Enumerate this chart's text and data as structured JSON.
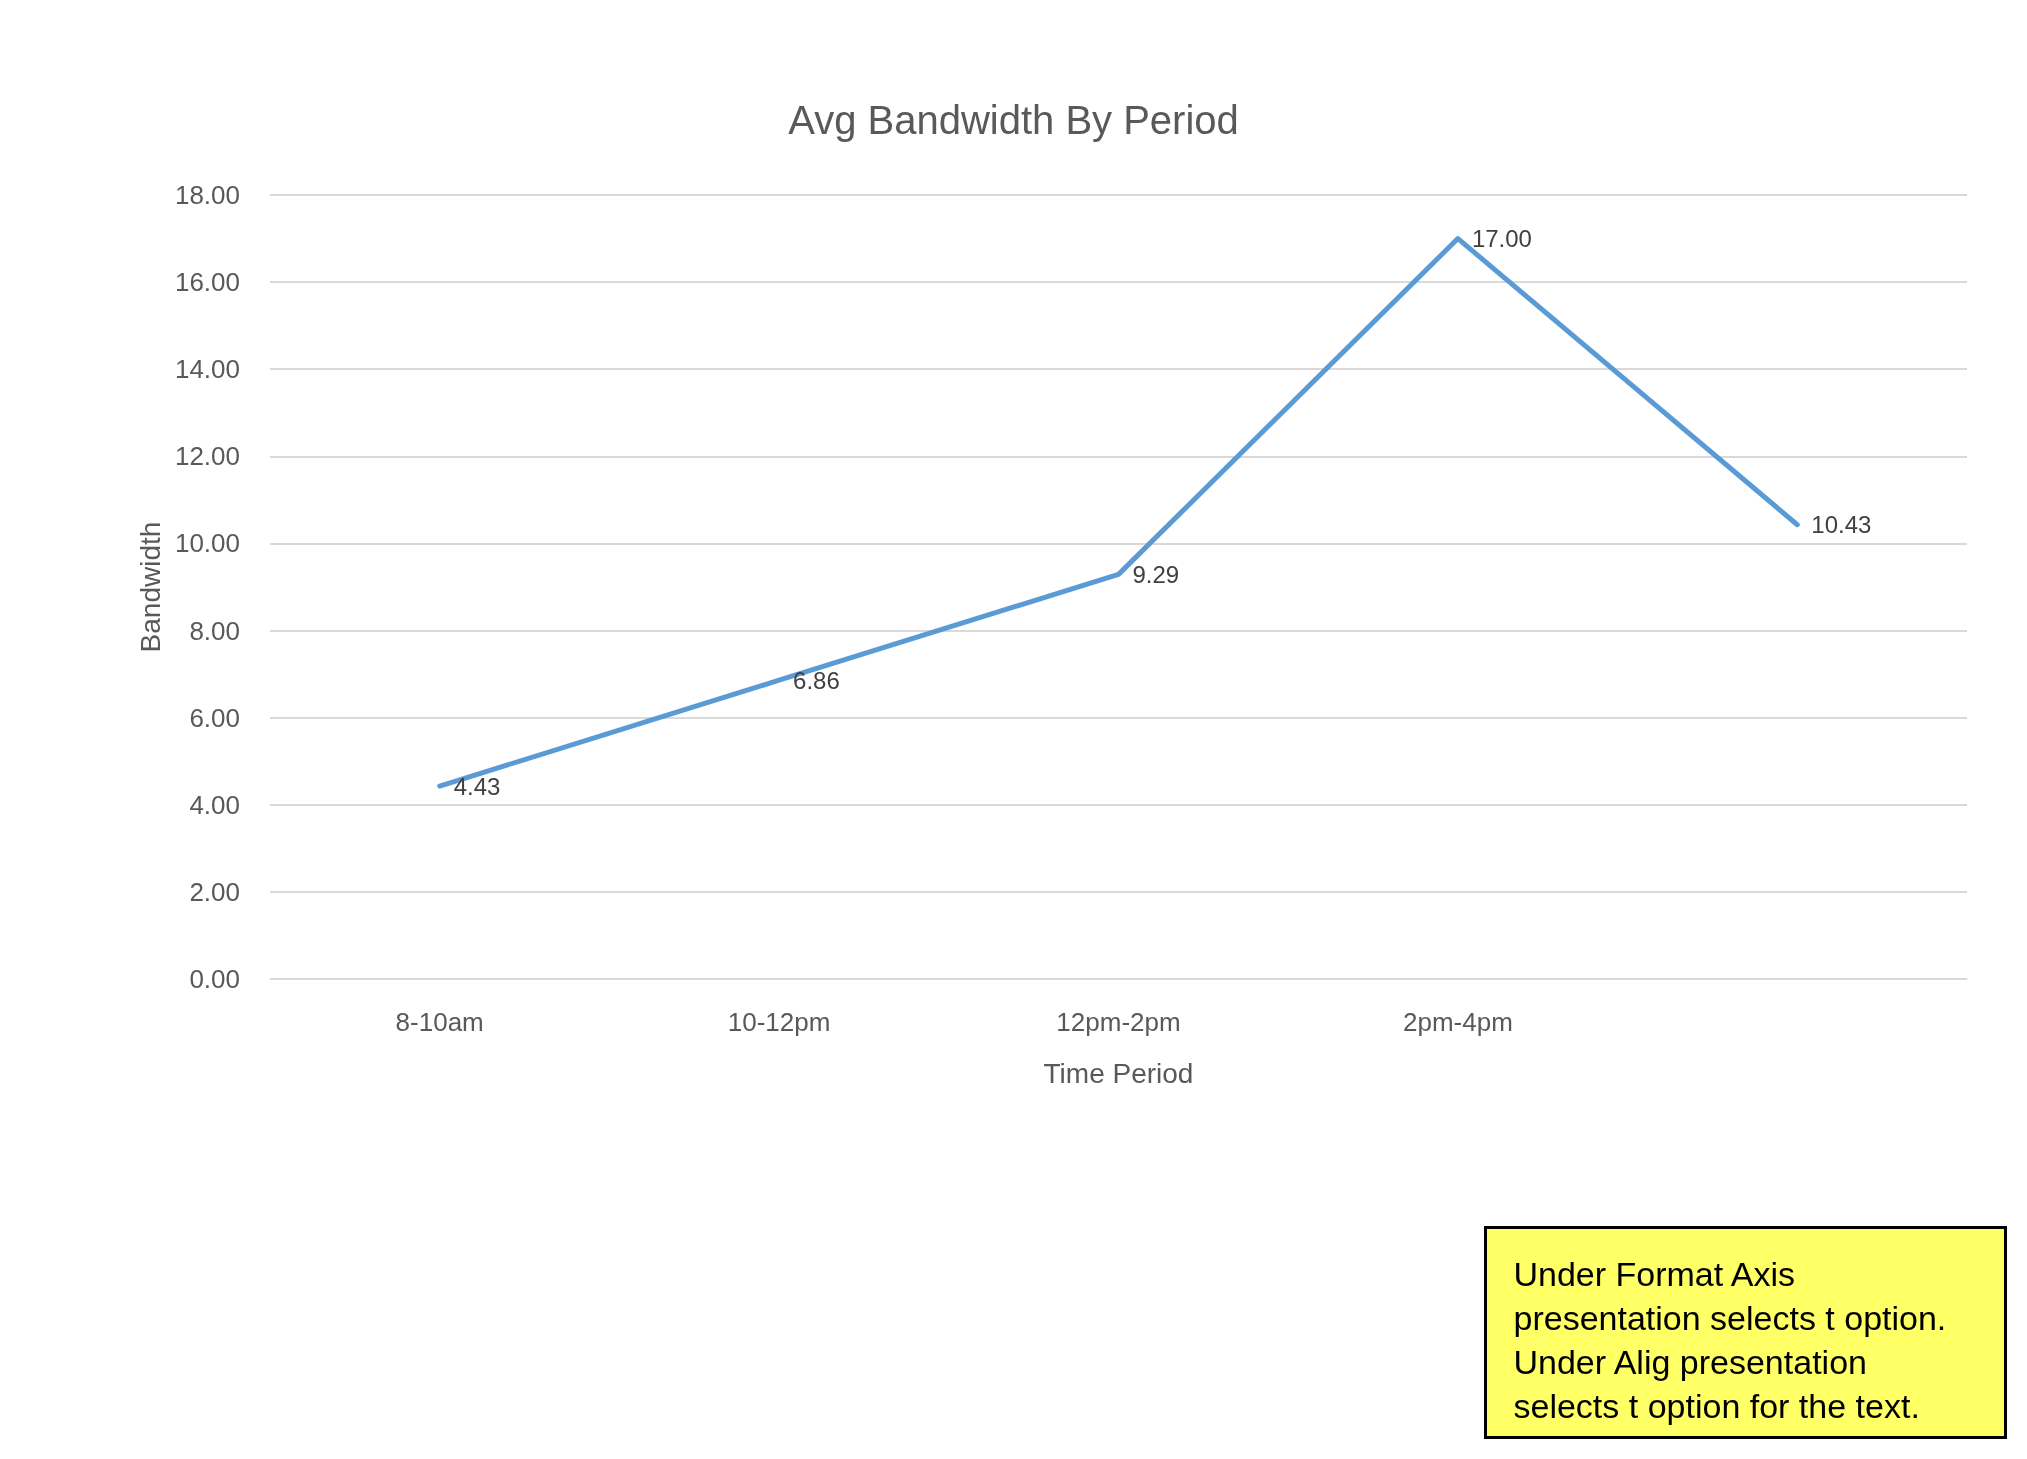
{
  "chart_data": {
    "type": "line",
    "title": "Avg Bandwidth By Period",
    "xlabel": "Time Period",
    "ylabel": "Bandwidth",
    "categories": [
      "8-10am",
      "10-12pm",
      "12pm-2pm",
      "2pm-4pm",
      null
    ],
    "series": [
      {
        "color": "#5b9bd5",
        "values": [
          4.43,
          6.86,
          9.29,
          17.0,
          10.43
        ],
        "value_labels": [
          "4.43",
          "6.86",
          "9.29",
          "17.00",
          "10.43"
        ]
      }
    ],
    "ylim": [
      0,
      18
    ],
    "yticks": [
      {
        "value": 0,
        "label": "0.00"
      },
      {
        "value": 2,
        "label": "2.00"
      },
      {
        "value": 4,
        "label": "4.00"
      },
      {
        "value": 6,
        "label": "6.00"
      },
      {
        "value": 8,
        "label": "8.00"
      },
      {
        "value": 10,
        "label": "10.00"
      },
      {
        "value": 12,
        "label": "12.00"
      },
      {
        "value": 14,
        "label": "14.00"
      },
      {
        "value": 16,
        "label": "16.00"
      },
      {
        "value": 18,
        "label": "18.00"
      }
    ],
    "grid": "y",
    "marker": "none",
    "line_style": "solid",
    "annotations": [
      "Under Format Axis presentation selects t option. Under Alig presentation selects t option for the text."
    ]
  }
}
